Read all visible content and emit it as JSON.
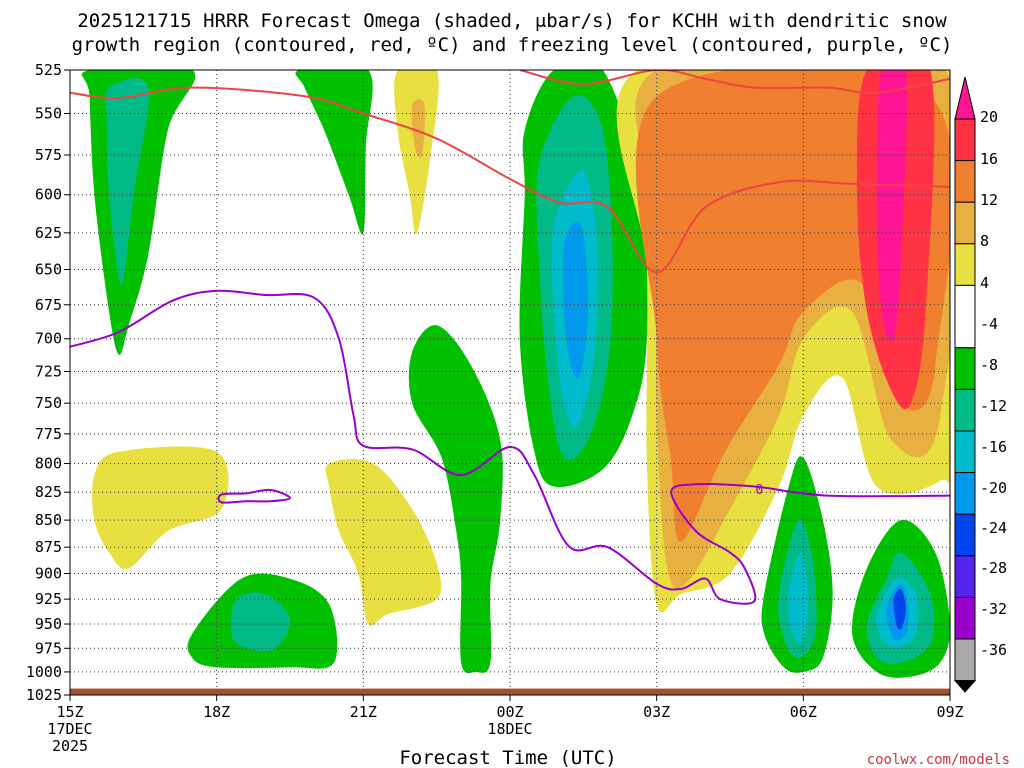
{
  "chart_data": {
    "type": "time-height cross section",
    "title_line1": "2025121715 HRRR Forecast Omega (shaded, μbar/s) for KCHH with dendritic snow",
    "title_line2": "growth region (contoured, red, ºC) and freezing level (contoured, purple, ºC)",
    "xlabel": "Forecast Time (UTC)",
    "credit": "coolwx.com/models",
    "x_ticks": [
      {
        "t": 0,
        "label": "15Z",
        "sub1": "17DEC",
        "sub2": "2025"
      },
      {
        "t": 3,
        "label": "18Z",
        "sub1": "",
        "sub2": ""
      },
      {
        "t": 6,
        "label": "21Z",
        "sub1": "",
        "sub2": ""
      },
      {
        "t": 9,
        "label": "00Z",
        "sub1": "18DEC",
        "sub2": ""
      },
      {
        "t": 12,
        "label": "03Z",
        "sub1": "",
        "sub2": ""
      },
      {
        "t": 15,
        "label": "06Z",
        "sub1": "",
        "sub2": ""
      },
      {
        "t": 18,
        "label": "09Z",
        "sub1": "",
        "sub2": ""
      }
    ],
    "xlim": [
      0,
      18
    ],
    "y_ticks": [
      525,
      550,
      575,
      600,
      625,
      650,
      675,
      700,
      725,
      750,
      775,
      800,
      825,
      850,
      875,
      900,
      925,
      950,
      975,
      1000,
      1025
    ],
    "ylim_hPa": [
      525,
      1025
    ],
    "y_scale": "log",
    "colorbar": {
      "labels": [
        "20",
        "16",
        "12",
        "8",
        "4",
        "-4",
        "-8",
        "-12",
        "-16",
        "-20",
        "-24",
        "-28",
        "-32",
        "-36"
      ],
      "colors": [
        "#ff1493",
        "#ff3344",
        "#f08030",
        "#e8b040",
        "#e8e040",
        "#ffffff",
        "#00c000",
        "#00bb88",
        "#00bbcc",
        "#0099ee",
        "#0044ee",
        "#5522ee",
        "#9900cc",
        "#aaaaaa",
        "#000000"
      ]
    },
    "omega_regions": [
      {
        "sign": "neg",
        "level": -4,
        "pts": [
          [
            0.4,
            525
          ],
          [
            2.5,
            525
          ],
          [
            2.0,
            560
          ],
          [
            1.6,
            640
          ],
          [
            1.2,
            690
          ],
          [
            1.0,
            712
          ],
          [
            0.8,
            680
          ],
          [
            0.5,
            600
          ],
          [
            0.4,
            540
          ]
        ]
      },
      {
        "sign": "neg",
        "level": -8,
        "pts": [
          [
            0.8,
            535
          ],
          [
            1.6,
            535
          ],
          [
            1.3,
            600
          ],
          [
            1.05,
            660
          ],
          [
            0.8,
            600
          ],
          [
            0.75,
            555
          ]
        ]
      },
      {
        "sign": "neg",
        "level": -4,
        "pts": [
          [
            4.7,
            525
          ],
          [
            6.1,
            525
          ],
          [
            6.05,
            570
          ],
          [
            6.0,
            625
          ],
          [
            5.7,
            600
          ],
          [
            5.2,
            560
          ],
          [
            4.8,
            535
          ]
        ]
      },
      {
        "sign": "pos",
        "level": 4,
        "pts": [
          [
            6.7,
            525
          ],
          [
            7.5,
            525
          ],
          [
            7.4,
            570
          ],
          [
            7.1,
            625
          ],
          [
            6.95,
            600
          ],
          [
            6.7,
            560
          ]
        ]
      },
      {
        "sign": "pos",
        "level": 8,
        "pts": [
          [
            7.0,
            545
          ],
          [
            7.25,
            545
          ],
          [
            7.2,
            575
          ],
          [
            7.05,
            570
          ]
        ]
      },
      {
        "sign": "neg",
        "level": -4,
        "pts": [
          [
            7.0,
            710
          ],
          [
            7.5,
            690
          ],
          [
            8.2,
            720
          ],
          [
            8.8,
            780
          ],
          [
            8.8,
            850
          ],
          [
            8.6,
            910
          ],
          [
            8.6,
            990
          ],
          [
            8.3,
            1000
          ],
          [
            8.0,
            990
          ],
          [
            8.0,
            905
          ],
          [
            7.9,
            860
          ],
          [
            7.6,
            795
          ],
          [
            7.0,
            750
          ]
        ]
      },
      {
        "sign": "pos",
        "level": 4,
        "pts": [
          [
            0.5,
            810
          ],
          [
            1.0,
            790
          ],
          [
            3.0,
            790
          ],
          [
            3.1,
            840
          ],
          [
            2.0,
            860
          ],
          [
            1.2,
            895
          ],
          [
            0.8,
            880
          ],
          [
            0.5,
            850
          ]
        ]
      },
      {
        "sign": "pos",
        "level": 4,
        "pts": [
          [
            5.3,
            800
          ],
          [
            6.2,
            800
          ],
          [
            7.0,
            840
          ],
          [
            7.5,
            890
          ],
          [
            7.5,
            925
          ],
          [
            6.5,
            940
          ],
          [
            6.1,
            950
          ],
          [
            5.9,
            900
          ],
          [
            5.5,
            860
          ],
          [
            5.3,
            820
          ]
        ]
      },
      {
        "sign": "neg",
        "level": -4,
        "pts": [
          [
            2.5,
            960
          ],
          [
            3.5,
            905
          ],
          [
            4.5,
            905
          ],
          [
            5.3,
            930
          ],
          [
            5.4,
            990
          ],
          [
            4.5,
            995
          ],
          [
            3.0,
            995
          ],
          [
            2.5,
            985
          ]
        ]
      },
      {
        "sign": "neg",
        "level": -8,
        "pts": [
          [
            3.4,
            925
          ],
          [
            4.0,
            920
          ],
          [
            4.5,
            945
          ],
          [
            4.2,
            975
          ],
          [
            3.6,
            975
          ],
          [
            3.3,
            960
          ]
        ]
      },
      {
        "sign": "neg",
        "level": -4,
        "pts": [
          [
            9.3,
            560
          ],
          [
            9.9,
            525
          ],
          [
            10.9,
            525
          ],
          [
            11.7,
            600
          ],
          [
            11.8,
            700
          ],
          [
            11.5,
            760
          ],
          [
            10.9,
            805
          ],
          [
            9.9,
            820
          ],
          [
            9.5,
            790
          ],
          [
            9.2,
            700
          ],
          [
            9.3,
            600
          ]
        ]
      },
      {
        "sign": "neg",
        "level": -8,
        "pts": [
          [
            9.6,
            580
          ],
          [
            10.3,
            540
          ],
          [
            10.9,
            560
          ],
          [
            11.1,
            640
          ],
          [
            11.0,
            720
          ],
          [
            10.6,
            780
          ],
          [
            10.1,
            795
          ],
          [
            9.8,
            740
          ],
          [
            9.6,
            650
          ]
        ]
      },
      {
        "sign": "neg",
        "level": -12,
        "pts": [
          [
            9.9,
            620
          ],
          [
            10.5,
            585
          ],
          [
            10.8,
            640
          ],
          [
            10.7,
            720
          ],
          [
            10.35,
            770
          ],
          [
            10.05,
            740
          ],
          [
            9.9,
            680
          ]
        ]
      },
      {
        "sign": "neg",
        "level": -16,
        "pts": [
          [
            10.1,
            635
          ],
          [
            10.45,
            620
          ],
          [
            10.6,
            680
          ],
          [
            10.4,
            730
          ],
          [
            10.15,
            700
          ]
        ]
      },
      {
        "sign": "pos",
        "level": 4,
        "pts": [
          [
            11.6,
            525
          ],
          [
            18.0,
            525
          ],
          [
            18.0,
            780
          ],
          [
            17.8,
            815
          ],
          [
            16.5,
            820
          ],
          [
            15.8,
            730
          ],
          [
            15.0,
            760
          ],
          [
            14.5,
            820
          ],
          [
            13.5,
            900
          ],
          [
            12.5,
            920
          ],
          [
            12.0,
            930
          ],
          [
            11.8,
            800
          ],
          [
            11.8,
            650
          ]
        ]
      },
      {
        "sign": "pos",
        "level": 8,
        "pts": [
          [
            12.0,
            525
          ],
          [
            17.9,
            525
          ],
          [
            17.8,
            760
          ],
          [
            16.8,
            780
          ],
          [
            16.0,
            680
          ],
          [
            15.0,
            700
          ],
          [
            14.5,
            760
          ],
          [
            13.5,
            840
          ],
          [
            12.6,
            910
          ],
          [
            12.2,
            890
          ],
          [
            12.0,
            760
          ],
          [
            12.0,
            620
          ]
        ]
      },
      {
        "sign": "pos",
        "level": 12,
        "pts": [
          [
            12.0,
            540
          ],
          [
            17.6,
            540
          ],
          [
            17.7,
            720
          ],
          [
            17.0,
            750
          ],
          [
            16.2,
            660
          ],
          [
            15.0,
            680
          ],
          [
            14.5,
            720
          ],
          [
            13.4,
            790
          ],
          [
            12.5,
            870
          ],
          [
            12.3,
            800
          ],
          [
            12.0,
            700
          ]
        ]
      },
      {
        "sign": "pos",
        "level": 16,
        "pts": [
          [
            16.3,
            525
          ],
          [
            17.6,
            525
          ],
          [
            17.5,
            680
          ],
          [
            17.2,
            750
          ],
          [
            16.8,
            740
          ],
          [
            16.3,
            680
          ],
          [
            16.1,
            600
          ]
        ]
      },
      {
        "sign": "pos",
        "level": 20,
        "pts": [
          [
            16.6,
            525
          ],
          [
            17.1,
            525
          ],
          [
            17.0,
            640
          ],
          [
            16.85,
            700
          ],
          [
            16.6,
            680
          ],
          [
            16.5,
            600
          ]
        ]
      },
      {
        "sign": "neg",
        "level": -4,
        "pts": [
          [
            14.2,
            920
          ],
          [
            14.7,
            820
          ],
          [
            15.0,
            795
          ],
          [
            15.4,
            850
          ],
          [
            15.6,
            920
          ],
          [
            15.4,
            985
          ],
          [
            15.0,
            1000
          ],
          [
            14.6,
            995
          ],
          [
            14.2,
            960
          ]
        ]
      },
      {
        "sign": "neg",
        "level": -8,
        "pts": [
          [
            14.5,
            920
          ],
          [
            14.9,
            850
          ],
          [
            15.2,
            890
          ],
          [
            15.25,
            960
          ],
          [
            14.9,
            985
          ],
          [
            14.6,
            965
          ]
        ]
      },
      {
        "sign": "neg",
        "level": -12,
        "pts": [
          [
            14.7,
            920
          ],
          [
            14.95,
            880
          ],
          [
            15.1,
            930
          ],
          [
            14.95,
            970
          ],
          [
            14.75,
            955
          ]
        ]
      },
      {
        "sign": "neg",
        "level": -4,
        "pts": [
          [
            16.0,
            960
          ],
          [
            16.3,
            895
          ],
          [
            17.0,
            850
          ],
          [
            17.7,
            880
          ],
          [
            18.0,
            950
          ],
          [
            17.8,
            990
          ],
          [
            17.2,
            1005
          ],
          [
            16.5,
            1000
          ]
        ]
      },
      {
        "sign": "neg",
        "level": -8,
        "pts": [
          [
            16.3,
            950
          ],
          [
            16.7,
            905
          ],
          [
            17.0,
            880
          ],
          [
            17.6,
            920
          ],
          [
            17.6,
            970
          ],
          [
            17.0,
            990
          ],
          [
            16.5,
            985
          ]
        ]
      },
      {
        "sign": "neg",
        "level": -12,
        "pts": [
          [
            16.5,
            940
          ],
          [
            16.9,
            905
          ],
          [
            17.3,
            920
          ],
          [
            17.3,
            960
          ],
          [
            16.9,
            975
          ],
          [
            16.6,
            965
          ]
        ]
      },
      {
        "sign": "neg",
        "level": -16,
        "pts": [
          [
            16.7,
            935
          ],
          [
            17.0,
            910
          ],
          [
            17.15,
            935
          ],
          [
            17.1,
            960
          ],
          [
            16.85,
            965
          ]
        ]
      },
      {
        "sign": "neg",
        "level": -20,
        "pts": [
          [
            16.85,
            925
          ],
          [
            17.0,
            915
          ],
          [
            17.1,
            935
          ],
          [
            17.0,
            955
          ],
          [
            16.9,
            950
          ]
        ]
      }
    ],
    "dgz_lines": [
      [
        [
          0,
          538
        ],
        [
          1,
          541
        ],
        [
          2.5,
          535
        ],
        [
          4.8,
          540
        ],
        [
          6,
          550
        ],
        [
          7.5,
          565
        ],
        [
          9,
          590
        ],
        [
          10,
          605
        ],
        [
          11,
          608
        ],
        [
          12,
          652
        ],
        [
          13,
          608
        ],
        [
          14.5,
          592
        ],
        [
          16,
          593
        ],
        [
          18,
          595
        ]
      ],
      [
        [
          9.2,
          525
        ],
        [
          10.5,
          533
        ],
        [
          12,
          525
        ],
        [
          13,
          530
        ],
        [
          14,
          535
        ],
        [
          15.5,
          535
        ],
        [
          16.5,
          538
        ],
        [
          18,
          530
        ]
      ]
    ],
    "freezing_level": [
      [
        [
          0,
          706
        ],
        [
          1,
          695
        ],
        [
          2.1,
          672
        ],
        [
          3.0,
          665
        ],
        [
          4.0,
          668
        ],
        [
          5.0,
          670
        ],
        [
          5.5,
          700
        ],
        [
          5.8,
          760
        ],
        [
          6.0,
          785
        ],
        [
          7.0,
          788
        ],
        [
          8.0,
          810
        ],
        [
          9.0,
          786
        ],
        [
          9.5,
          810
        ],
        [
          10.2,
          874
        ],
        [
          11.0,
          875
        ],
        [
          12.0,
          910
        ],
        [
          12.5,
          915
        ],
        [
          13.0,
          905
        ],
        [
          13.3,
          925
        ],
        [
          14.0,
          927
        ],
        [
          13.8,
          895
        ],
        [
          13.5,
          880
        ],
        [
          12.8,
          860
        ],
        [
          12.3,
          825
        ],
        [
          12.8,
          818
        ],
        [
          14.0,
          820
        ],
        [
          15.5,
          828
        ],
        [
          18.0,
          828
        ]
      ],
      [
        [
          3.1,
          827
        ],
        [
          3.6,
          826
        ],
        [
          4.1,
          823
        ],
        [
          4.5,
          830
        ],
        [
          4.1,
          833
        ],
        [
          3.6,
          833
        ],
        [
          3.1,
          834
        ]
      ]
    ],
    "freezing_level_label": "0",
    "ground_fill_hPa": 1018
  }
}
